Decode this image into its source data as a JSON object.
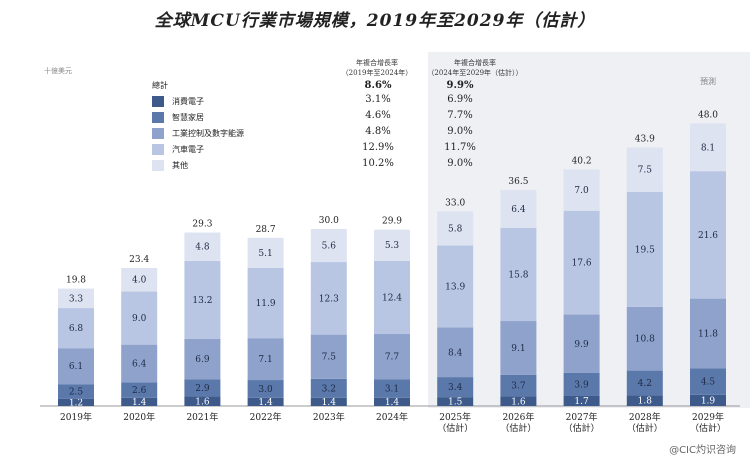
{
  "title": "全球MCU行業市場規模，2019年至2029年（估計）",
  "unit_label": "十億美元",
  "forecast_label": "預測",
  "watermark": "@CIC灼识咨询",
  "cagr_headers": [
    "年複合增長率\n（2019年至2024年）",
    "年複合增長率\n（2024年至2029年（估計））"
  ],
  "legend": {
    "total_label": "總計",
    "items": [
      {
        "name": "消費電子",
        "color": "#3d5a8a",
        "cagr1": "3.1%",
        "cagr2": "6.9%"
      },
      {
        "name": "智慧家居",
        "color": "#5b78ab",
        "cagr1": "4.6%",
        "cagr2": "7.7%"
      },
      {
        "name": "工業控制及數字能源",
        "color": "#8ea2cc",
        "cagr1": "4.8%",
        "cagr2": "9.0%"
      },
      {
        "name": "汽車電子",
        "color": "#b8c6e3",
        "cagr1": "12.9%",
        "cagr2": "11.7%"
      },
      {
        "name": "其他",
        "color": "#dde3f0",
        "cagr1": "10.2%",
        "cagr2": "9.0%"
      }
    ],
    "total_cagr1": "8.6%",
    "total_cagr2": "9.9%"
  },
  "chart_data": {
    "type": "bar",
    "stacked": true,
    "title": "全球MCU行業市場規模，2019年至2029年（估計）",
    "ylabel": "十億美元",
    "categories": [
      "2019年",
      "2020年",
      "2021年",
      "2022年",
      "2023年",
      "2024年",
      "2025年\n（估計）",
      "2026年\n（估計）",
      "2027年\n（估計）",
      "2028年\n（估計）",
      "2029年\n（估計）"
    ],
    "series": [
      {
        "name": "消費電子",
        "values": [
          1.2,
          1.4,
          1.6,
          1.4,
          1.4,
          1.4,
          1.5,
          1.6,
          1.7,
          1.8,
          1.9
        ]
      },
      {
        "name": "智慧家居",
        "values": [
          2.5,
          2.6,
          2.9,
          3.0,
          3.2,
          3.1,
          3.4,
          3.7,
          3.9,
          4.2,
          4.5
        ]
      },
      {
        "name": "工業控制及數字能源",
        "values": [
          6.1,
          6.4,
          6.9,
          7.1,
          7.5,
          7.7,
          8.4,
          9.1,
          9.9,
          10.8,
          11.8
        ]
      },
      {
        "name": "汽車電子",
        "values": [
          6.8,
          9.0,
          13.2,
          11.9,
          12.3,
          12.4,
          13.9,
          15.8,
          17.6,
          19.5,
          21.6
        ]
      },
      {
        "name": "其他",
        "values": [
          3.3,
          4.0,
          4.8,
          5.1,
          5.6,
          5.3,
          5.8,
          6.4,
          7.0,
          7.5,
          8.1
        ]
      }
    ],
    "totals": [
      19.8,
      23.4,
      29.3,
      28.7,
      30.0,
      29.9,
      33.0,
      36.5,
      40.2,
      43.9,
      48.0
    ],
    "forecast_from_index": 6,
    "ylim": [
      0,
      50
    ]
  }
}
